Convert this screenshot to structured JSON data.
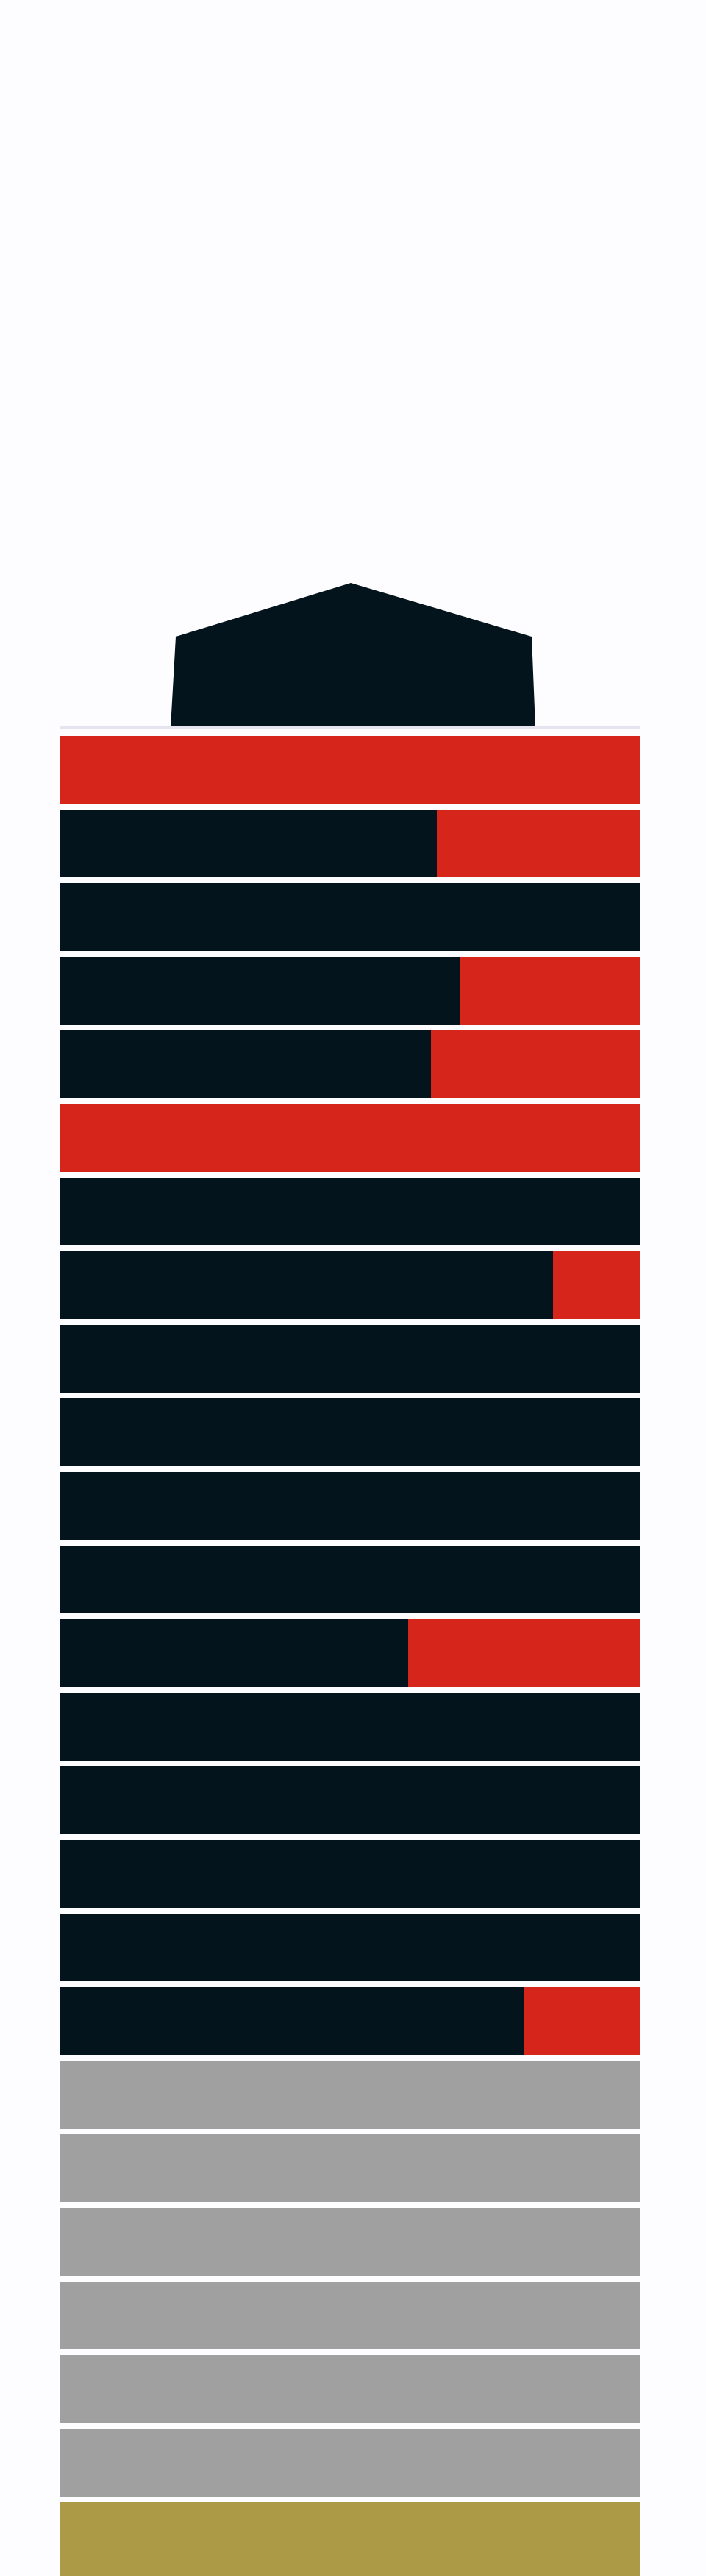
{
  "chart_data": {
    "type": "bar",
    "orientation": "horizontal-stacked",
    "colors": {
      "dark": "#04141c",
      "red": "#d6251b",
      "gray": "#a0a0a0",
      "gold": "#ad9a47",
      "separator": "#e6e4ee",
      "background": "#fdfcfe"
    },
    "floors": [
      {
        "kind": "split",
        "dark_fraction": 0.0
      },
      {
        "kind": "split",
        "dark_fraction": 0.65
      },
      {
        "kind": "split",
        "dark_fraction": 1.0
      },
      {
        "kind": "split",
        "dark_fraction": 0.69
      },
      {
        "kind": "split",
        "dark_fraction": 0.64
      },
      {
        "kind": "split",
        "dark_fraction": 0.0
      },
      {
        "kind": "split",
        "dark_fraction": 1.0
      },
      {
        "kind": "split",
        "dark_fraction": 0.85
      },
      {
        "kind": "split",
        "dark_fraction": 1.0
      },
      {
        "kind": "split",
        "dark_fraction": 1.0
      },
      {
        "kind": "split",
        "dark_fraction": 1.0
      },
      {
        "kind": "split",
        "dark_fraction": 1.0
      },
      {
        "kind": "split",
        "dark_fraction": 0.6
      },
      {
        "kind": "split",
        "dark_fraction": 1.0
      },
      {
        "kind": "split",
        "dark_fraction": 1.0
      },
      {
        "kind": "split",
        "dark_fraction": 1.0
      },
      {
        "kind": "split",
        "dark_fraction": 1.0
      },
      {
        "kind": "split",
        "dark_fraction": 0.8
      },
      {
        "kind": "gray"
      },
      {
        "kind": "gray"
      },
      {
        "kind": "gray"
      },
      {
        "kind": "gray"
      },
      {
        "kind": "gray"
      },
      {
        "kind": "gray"
      },
      {
        "kind": "gold"
      }
    ]
  }
}
